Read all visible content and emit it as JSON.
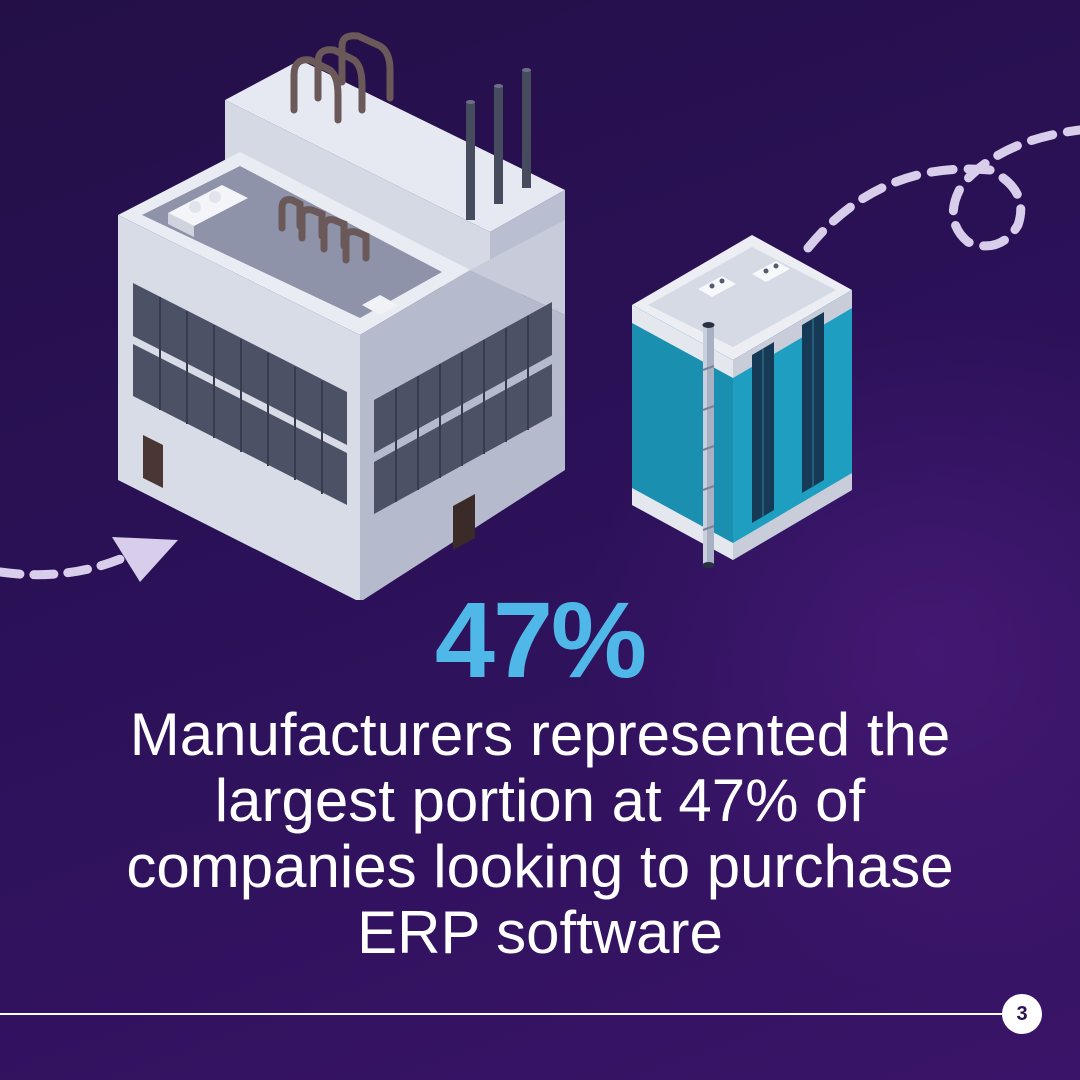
{
  "stat": {
    "value": "47%"
  },
  "caption": {
    "lines": [
      "Manufacturers represented the",
      "largest portion at 47% of",
      "companies looking to purchase",
      "ERP software"
    ]
  },
  "footer": {
    "page_number": "3"
  },
  "icons": [
    "factory-illustration",
    "office-tower-illustration",
    "dashed-arrow-icon",
    "dashed-loop-path"
  ],
  "colors": {
    "background": "#2a1154",
    "accent": "#4fb8e8",
    "text": "#ffffff",
    "tower_glass": "#1a8fb0"
  }
}
